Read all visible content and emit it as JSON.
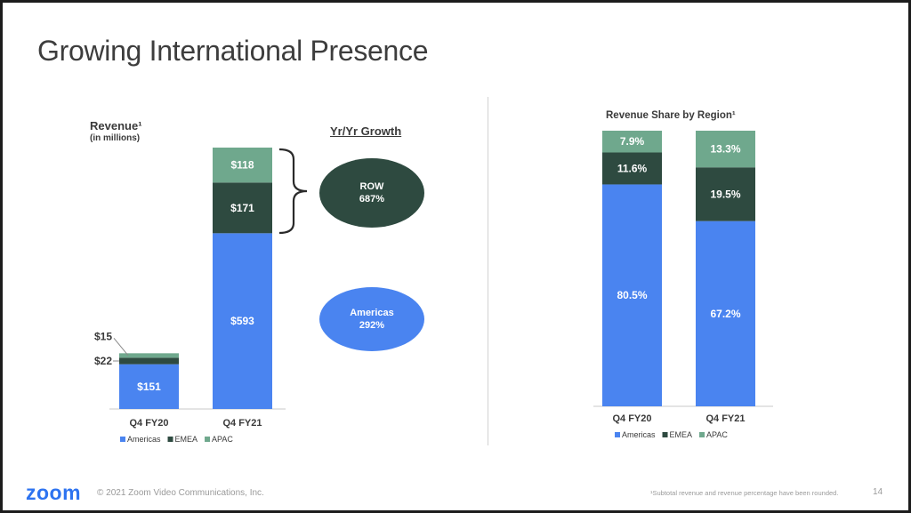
{
  "slide": {
    "title": "Growing International Presence",
    "growth_header": "Yr/Yr Growth",
    "growth": [
      {
        "region": "ROW",
        "value": "687%"
      },
      {
        "region": "Americas",
        "value": "292%"
      }
    ],
    "footer": {
      "logo": "zoom",
      "copyright": "© 2021 Zoom Video Communications, Inc.",
      "footnote": "¹Subtotal revenue and revenue percentage have been rounded.",
      "page_number": "14"
    }
  },
  "colors": {
    "americas": "#4a84f0",
    "emea": "#2e4a40",
    "apac": "#6fa88d",
    "text": "#3a3a3a"
  },
  "chart_data": [
    {
      "type": "bar",
      "stacked": true,
      "title": "Revenue¹",
      "subtitle": "(in millions)",
      "categories": [
        "Q4 FY20",
        "Q4 FY21"
      ],
      "series": [
        {
          "name": "Americas",
          "values": [
            151,
            593
          ],
          "labels": [
            "$151",
            "$593"
          ]
        },
        {
          "name": "EMEA",
          "values": [
            22,
            171
          ],
          "labels": [
            "$22",
            "$171"
          ]
        },
        {
          "name": "APAC",
          "values": [
            15,
            118
          ],
          "labels": [
            "$15",
            "$118"
          ]
        }
      ],
      "legend": "bottom"
    },
    {
      "type": "bar",
      "stacked": true,
      "title": "Revenue Share by Region¹",
      "categories": [
        "Q4 FY20",
        "Q4 FY21"
      ],
      "series": [
        {
          "name": "Americas",
          "values": [
            80.5,
            67.2
          ],
          "labels": [
            "80.5%",
            "67.2%"
          ]
        },
        {
          "name": "EMEA",
          "values": [
            11.6,
            19.5
          ],
          "labels": [
            "11.6%",
            "19.5%"
          ]
        },
        {
          "name": "APAC",
          "values": [
            7.9,
            13.3
          ],
          "labels": [
            "7.9%",
            "13.3%"
          ]
        }
      ],
      "legend": "bottom"
    }
  ]
}
